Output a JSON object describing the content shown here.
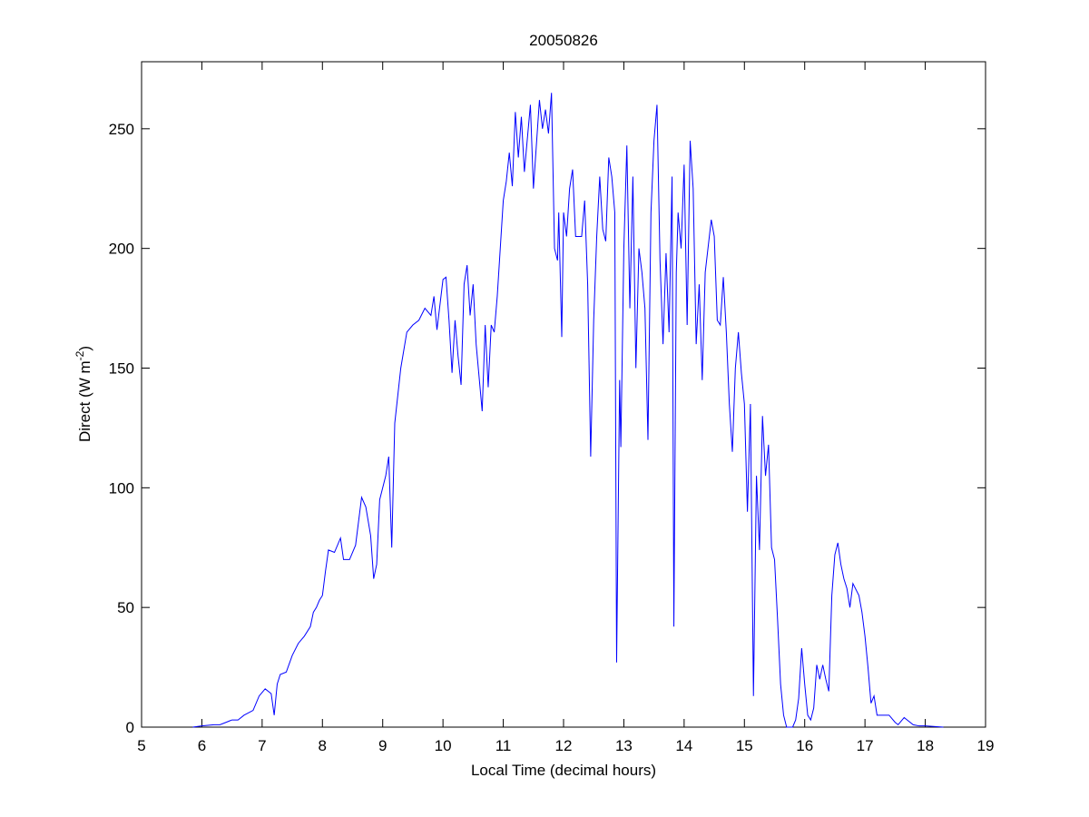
{
  "chart_data": {
    "type": "line",
    "title": "20050826",
    "xlabel": "Local Time (decimal hours)",
    "ylabel_parts": [
      "Direct (W m",
      "-2",
      ")"
    ],
    "color": "#0000ff",
    "xlim": [
      5,
      19
    ],
    "xticks": [
      5,
      6,
      7,
      8,
      9,
      10,
      11,
      12,
      13,
      14,
      15,
      16,
      17,
      18,
      19
    ],
    "ylim": [
      0,
      278
    ],
    "yticks": [
      0,
      50,
      100,
      150,
      200,
      250
    ],
    "x": [
      5.85,
      6.0,
      6.2,
      6.3,
      6.4,
      6.5,
      6.6,
      6.7,
      6.85,
      6.95,
      7.05,
      7.15,
      7.2,
      7.25,
      7.3,
      7.4,
      7.5,
      7.6,
      7.7,
      7.8,
      7.85,
      7.9,
      7.95,
      8.0,
      8.05,
      8.1,
      8.2,
      8.3,
      8.35,
      8.45,
      8.55,
      8.6,
      8.65,
      8.72,
      8.8,
      8.85,
      8.9,
      8.95,
      9.05,
      9.1,
      9.15,
      9.2,
      9.3,
      9.4,
      9.5,
      9.6,
      9.7,
      9.8,
      9.85,
      9.9,
      10.0,
      10.05,
      10.1,
      10.15,
      10.2,
      10.25,
      10.3,
      10.35,
      10.4,
      10.45,
      10.5,
      10.55,
      10.65,
      10.7,
      10.75,
      10.8,
      10.85,
      10.9,
      11.0,
      11.05,
      11.1,
      11.15,
      11.2,
      11.25,
      11.3,
      11.35,
      11.45,
      11.5,
      11.6,
      11.65,
      11.7,
      11.75,
      11.8,
      11.85,
      11.9,
      11.92,
      11.97,
      12.0,
      12.05,
      12.1,
      12.15,
      12.2,
      12.3,
      12.35,
      12.4,
      12.45,
      12.5,
      12.55,
      12.6,
      12.65,
      12.7,
      12.75,
      12.8,
      12.85,
      12.88,
      12.93,
      12.95,
      13.0,
      13.05,
      13.1,
      13.15,
      13.2,
      13.25,
      13.3,
      13.35,
      13.4,
      13.45,
      13.5,
      13.55,
      13.6,
      13.65,
      13.7,
      13.75,
      13.8,
      13.83,
      13.87,
      13.9,
      13.95,
      14.0,
      14.05,
      14.1,
      14.15,
      14.2,
      14.25,
      14.3,
      14.35,
      14.45,
      14.5,
      14.55,
      14.6,
      14.65,
      14.7,
      14.75,
      14.8,
      14.85,
      14.9,
      14.95,
      15.0,
      15.05,
      15.1,
      15.15,
      15.2,
      15.25,
      15.3,
      15.35,
      15.4,
      15.45,
      15.5,
      15.55,
      15.6,
      15.65,
      15.7,
      15.8,
      15.85,
      15.9,
      15.95,
      16.0,
      16.05,
      16.1,
      16.15,
      16.2,
      16.25,
      16.3,
      16.35,
      16.4,
      16.45,
      16.5,
      16.55,
      16.6,
      16.65,
      16.7,
      16.75,
      16.8,
      16.9,
      16.95,
      17.0,
      17.05,
      17.1,
      17.15,
      17.2,
      17.3,
      17.4,
      17.5,
      17.55,
      17.65,
      17.7,
      17.8,
      17.9,
      18.0,
      18.3
    ],
    "values": [
      0,
      0.5,
      1,
      1,
      2,
      3,
      3,
      5,
      7,
      13,
      16,
      14,
      5,
      18,
      22,
      23,
      30,
      35,
      38,
      42,
      48,
      50,
      53,
      55,
      65,
      74,
      73,
      79,
      70,
      70,
      76,
      86,
      96,
      92,
      80,
      62,
      68,
      95,
      105,
      113,
      75,
      127,
      150,
      165,
      168,
      170,
      175,
      172,
      180,
      166,
      187,
      188,
      170,
      148,
      170,
      155,
      143,
      185,
      193,
      172,
      185,
      160,
      132,
      168,
      142,
      168,
      165,
      180,
      220,
      228,
      240,
      226,
      257,
      238,
      255,
      232,
      260,
      225,
      262,
      250,
      258,
      248,
      265,
      200,
      195,
      215,
      163,
      215,
      205,
      225,
      233,
      205,
      205,
      220,
      185,
      113,
      170,
      205,
      230,
      208,
      203,
      238,
      230,
      215,
      27,
      145,
      117,
      200,
      243,
      175,
      230,
      150,
      200,
      190,
      175,
      120,
      215,
      245,
      260,
      195,
      160,
      198,
      165,
      230,
      42,
      190,
      215,
      200,
      235,
      168,
      245,
      225,
      160,
      185,
      145,
      190,
      212,
      205,
      170,
      168,
      188,
      165,
      135,
      115,
      150,
      165,
      148,
      135,
      90,
      135,
      13,
      105,
      74,
      130,
      105,
      118,
      75,
      70,
      45,
      18,
      5,
      0,
      0,
      3,
      12,
      33,
      18,
      5,
      3,
      8,
      26,
      20,
      26,
      20,
      15,
      55,
      72,
      77,
      68,
      62,
      58,
      50,
      60,
      55,
      48,
      38,
      25,
      10,
      13,
      5,
      5,
      5,
      2,
      1,
      4,
      3,
      1,
      0.5,
      0.5,
      0
    ]
  }
}
